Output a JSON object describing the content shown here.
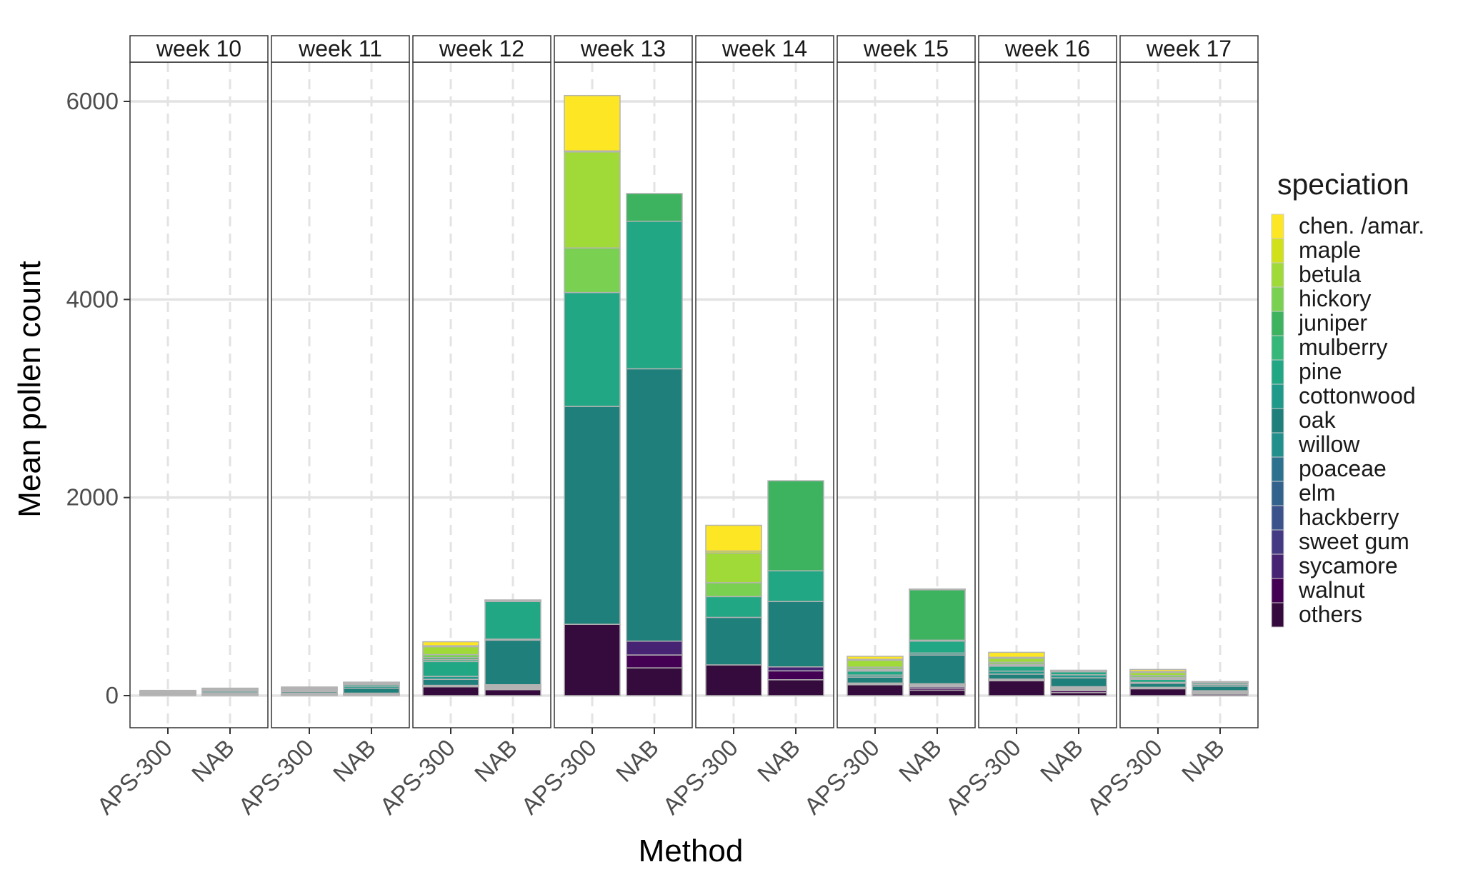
{
  "chart_data": {
    "type": "bar",
    "stacked": true,
    "faceted_by": "week",
    "facets": [
      "week 10",
      "week 11",
      "week 12",
      "week 13",
      "week 14",
      "week 15",
      "week 16",
      "week 17"
    ],
    "categories": [
      "APS-300",
      "NAB"
    ],
    "xlabel": "Method",
    "ylabel": "Mean pollen count",
    "ylim": [
      -300,
      6300
    ],
    "yticks": [
      0,
      2000,
      4000,
      6000
    ],
    "grid": true,
    "legend": {
      "title": "speciation",
      "position": "right",
      "entries": [
        "chen. /amar.",
        "maple",
        "betula",
        "hickory",
        "juniper",
        "mulberry",
        "pine",
        "cottonwood",
        "oak",
        "willow",
        "poaceae",
        "elm",
        "hackberry",
        "sweet gum",
        "sycamore",
        "walnut",
        "others"
      ]
    },
    "series": [
      {
        "name": "others",
        "color": "#350a3c",
        "values": [
          [
            5,
            5
          ],
          [
            10,
            10
          ],
          [
            90,
            60
          ],
          [
            720,
            280
          ],
          [
            310,
            160
          ],
          [
            110,
            55
          ],
          [
            150,
            30
          ],
          [
            70,
            15
          ]
        ]
      },
      {
        "name": "walnut",
        "color": "#440154",
        "values": [
          [
            2,
            2
          ],
          [
            2,
            3
          ],
          [
            2,
            10
          ],
          [
            0,
            130
          ],
          [
            0,
            90
          ],
          [
            3,
            20
          ],
          [
            3,
            20
          ],
          [
            2,
            5
          ]
        ]
      },
      {
        "name": "sycamore",
        "color": "#472374",
        "values": [
          [
            2,
            2
          ],
          [
            2,
            2
          ],
          [
            2,
            10
          ],
          [
            0,
            140
          ],
          [
            0,
            40
          ],
          [
            3,
            15
          ],
          [
            3,
            10
          ],
          [
            2,
            5
          ]
        ]
      },
      {
        "name": "sweet gum",
        "color": "#443a83",
        "values": [
          [
            2,
            2
          ],
          [
            2,
            2
          ],
          [
            2,
            10
          ],
          [
            0,
            0
          ],
          [
            0,
            0
          ],
          [
            3,
            10
          ],
          [
            3,
            10
          ],
          [
            2,
            5
          ]
        ]
      },
      {
        "name": "hackberry",
        "color": "#3b528b",
        "values": [
          [
            2,
            2
          ],
          [
            2,
            2
          ],
          [
            2,
            5
          ],
          [
            0,
            0
          ],
          [
            0,
            0
          ],
          [
            2,
            5
          ],
          [
            2,
            5
          ],
          [
            2,
            5
          ]
        ]
      },
      {
        "name": "elm",
        "color": "#33638d",
        "values": [
          [
            2,
            2
          ],
          [
            2,
            2
          ],
          [
            2,
            5
          ],
          [
            0,
            0
          ],
          [
            0,
            0
          ],
          [
            2,
            5
          ],
          [
            2,
            5
          ],
          [
            2,
            5
          ]
        ]
      },
      {
        "name": "poaceae",
        "color": "#2c728e",
        "values": [
          [
            2,
            2
          ],
          [
            2,
            2
          ],
          [
            2,
            5
          ],
          [
            0,
            0
          ],
          [
            0,
            0
          ],
          [
            2,
            5
          ],
          [
            2,
            5
          ],
          [
            2,
            5
          ]
        ]
      },
      {
        "name": "willow",
        "color": "#21908c",
        "values": [
          [
            2,
            2
          ],
          [
            3,
            2
          ],
          [
            2,
            5
          ],
          [
            0,
            0
          ],
          [
            0,
            0
          ],
          [
            2,
            5
          ],
          [
            2,
            5
          ],
          [
            2,
            5
          ]
        ]
      },
      {
        "name": "oak",
        "color": "#1f7f7a",
        "values": [
          [
            5,
            10
          ],
          [
            15,
            50
          ],
          [
            60,
            450
          ],
          [
            2200,
            2750
          ],
          [
            480,
            660
          ],
          [
            60,
            290
          ],
          [
            50,
            90
          ],
          [
            40,
            45
          ]
        ]
      },
      {
        "name": "cottonwood",
        "color": "#1f9a8a",
        "values": [
          [
            5,
            15
          ],
          [
            10,
            20
          ],
          [
            30,
            10
          ],
          [
            0,
            0
          ],
          [
            0,
            0
          ],
          [
            20,
            20
          ],
          [
            30,
            30
          ],
          [
            10,
            15
          ]
        ]
      },
      {
        "name": "pine",
        "color": "#22a784",
        "values": [
          [
            5,
            10
          ],
          [
            10,
            15
          ],
          [
            150,
            380
          ],
          [
            1150,
            1490
          ],
          [
            210,
            310
          ],
          [
            40,
            120
          ],
          [
            50,
            30
          ],
          [
            30,
            15
          ]
        ]
      },
      {
        "name": "mulberry",
        "color": "#35b779",
        "values": [
          [
            3,
            5
          ],
          [
            5,
            10
          ],
          [
            20,
            5
          ],
          [
            0,
            0
          ],
          [
            0,
            0
          ],
          [
            10,
            10
          ],
          [
            10,
            5
          ],
          [
            10,
            5
          ]
        ]
      },
      {
        "name": "juniper",
        "color": "#3db35f",
        "values": [
          [
            3,
            10
          ],
          [
            5,
            10
          ],
          [
            20,
            5
          ],
          [
            0,
            280
          ],
          [
            0,
            910
          ],
          [
            10,
            510
          ],
          [
            10,
            5
          ],
          [
            10,
            5
          ]
        ]
      },
      {
        "name": "hickory",
        "color": "#7ad151",
        "values": [
          [
            3,
            2
          ],
          [
            5,
            2
          ],
          [
            30,
            2
          ],
          [
            450,
            0
          ],
          [
            140,
            0
          ],
          [
            20,
            2
          ],
          [
            20,
            2
          ],
          [
            20,
            2
          ]
        ]
      },
      {
        "name": "betula",
        "color": "#a0da39",
        "values": [
          [
            3,
            2
          ],
          [
            5,
            2
          ],
          [
            80,
            2
          ],
          [
            970,
            0
          ],
          [
            300,
            0
          ],
          [
            70,
            2
          ],
          [
            40,
            2
          ],
          [
            30,
            2
          ]
        ]
      },
      {
        "name": "maple",
        "color": "#d0e11c",
        "values": [
          [
            2,
            1
          ],
          [
            2,
            1
          ],
          [
            10,
            1
          ],
          [
            10,
            0
          ],
          [
            20,
            0
          ],
          [
            10,
            1
          ],
          [
            10,
            1
          ],
          [
            10,
            1
          ]
        ]
      },
      {
        "name": "chen. /amar.",
        "color": "#fde725",
        "values": [
          [
            5,
            1
          ],
          [
            5,
            1
          ],
          [
            40,
            1
          ],
          [
            560,
            0
          ],
          [
            260,
            0
          ],
          [
            30,
            1
          ],
          [
            50,
            1
          ],
          [
            20,
            1
          ]
        ]
      }
    ]
  }
}
